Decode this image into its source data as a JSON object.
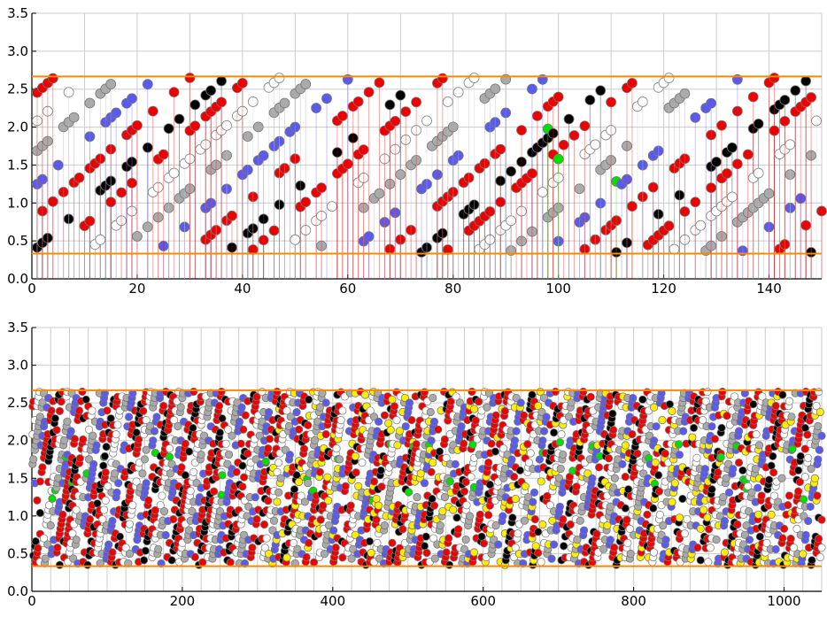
{
  "colors": {
    "red": "#ee0000",
    "blue": "#5a5aee",
    "black": "#000000",
    "gray": "#aaaaaa",
    "green": "#00e000",
    "yellow": "#ffee00",
    "orange": "#ff8800",
    "grid": "#cccccc"
  },
  "chart_data": [
    {
      "type": "scatter",
      "title": "",
      "xlim": [
        0,
        150
      ],
      "ylim": [
        0,
        3.5
      ],
      "x_ticks": [
        "0",
        "20",
        "40",
        "60",
        "80",
        "100",
        "120",
        "140"
      ],
      "y_ticks": [
        "0.0",
        "0.5",
        "1.0",
        "1.5",
        "2.0",
        "2.5",
        "3.0",
        "3.5"
      ],
      "hlines": [
        2.667,
        0.333
      ],
      "stems": true,
      "grid": "vertical lines every 10, horizontal lines every 0.5"
    },
    {
      "type": "scatter",
      "title": "",
      "xlim": [
        0,
        1050
      ],
      "ylim": [
        0,
        3.5
      ],
      "x_ticks": [
        "0",
        "200",
        "400",
        "600",
        "800",
        "1000"
      ],
      "y_ticks": [
        "0.0",
        "0.5",
        "1.0",
        "1.5",
        "2.0",
        "2.5",
        "3.0",
        "3.5"
      ],
      "hlines": [
        2.667,
        0.333
      ],
      "stems": false,
      "grid": "vertical lines every 25, horizontal lines every 0.5"
    }
  ]
}
